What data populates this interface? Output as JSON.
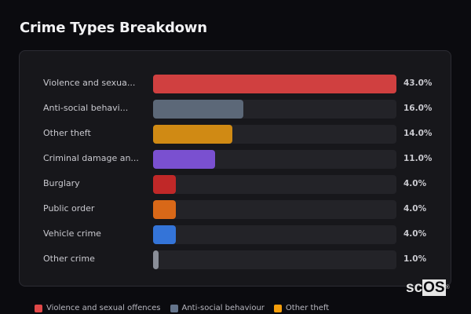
{
  "title": "Crime Types Breakdown",
  "logo": {
    "prefix": "sc",
    "highlight": "OS",
    "mark": "®"
  },
  "chart_data": {
    "type": "bar",
    "orientation": "horizontal",
    "title": "Crime Types Breakdown",
    "categories": [
      "Violence and sexual offences",
      "Anti-social behaviour",
      "Other theft",
      "Criminal damage and arson",
      "Burglary",
      "Public order",
      "Vehicle crime",
      "Other crime"
    ],
    "display_labels": [
      "Violence and sexua...",
      "Anti-social behavi...",
      "Other theft",
      "Criminal damage an...",
      "Burglary",
      "Public order",
      "Vehicle crime",
      "Other crime"
    ],
    "values": [
      43.0,
      16.0,
      14.0,
      11.0,
      4.0,
      4.0,
      4.0,
      1.0
    ],
    "value_labels": [
      "43.0%",
      "16.0%",
      "14.0%",
      "11.0%",
      "4.0%",
      "4.0%",
      "4.0%",
      "1.0%"
    ],
    "colors": [
      "#d04040",
      "#5c6878",
      "#d08a14",
      "#7a50d0",
      "#c02828",
      "#d86818",
      "#3474d8",
      "#8a8e98"
    ],
    "xlim": [
      0,
      43
    ],
    "unit": "%",
    "legend": [
      {
        "label": "Violence and sexual offences",
        "color": "#e04848"
      },
      {
        "label": "Anti-social behaviour",
        "color": "#64748b"
      },
      {
        "label": "Other theft",
        "color": "#f59e0b"
      }
    ],
    "legend_position": "bottom"
  }
}
